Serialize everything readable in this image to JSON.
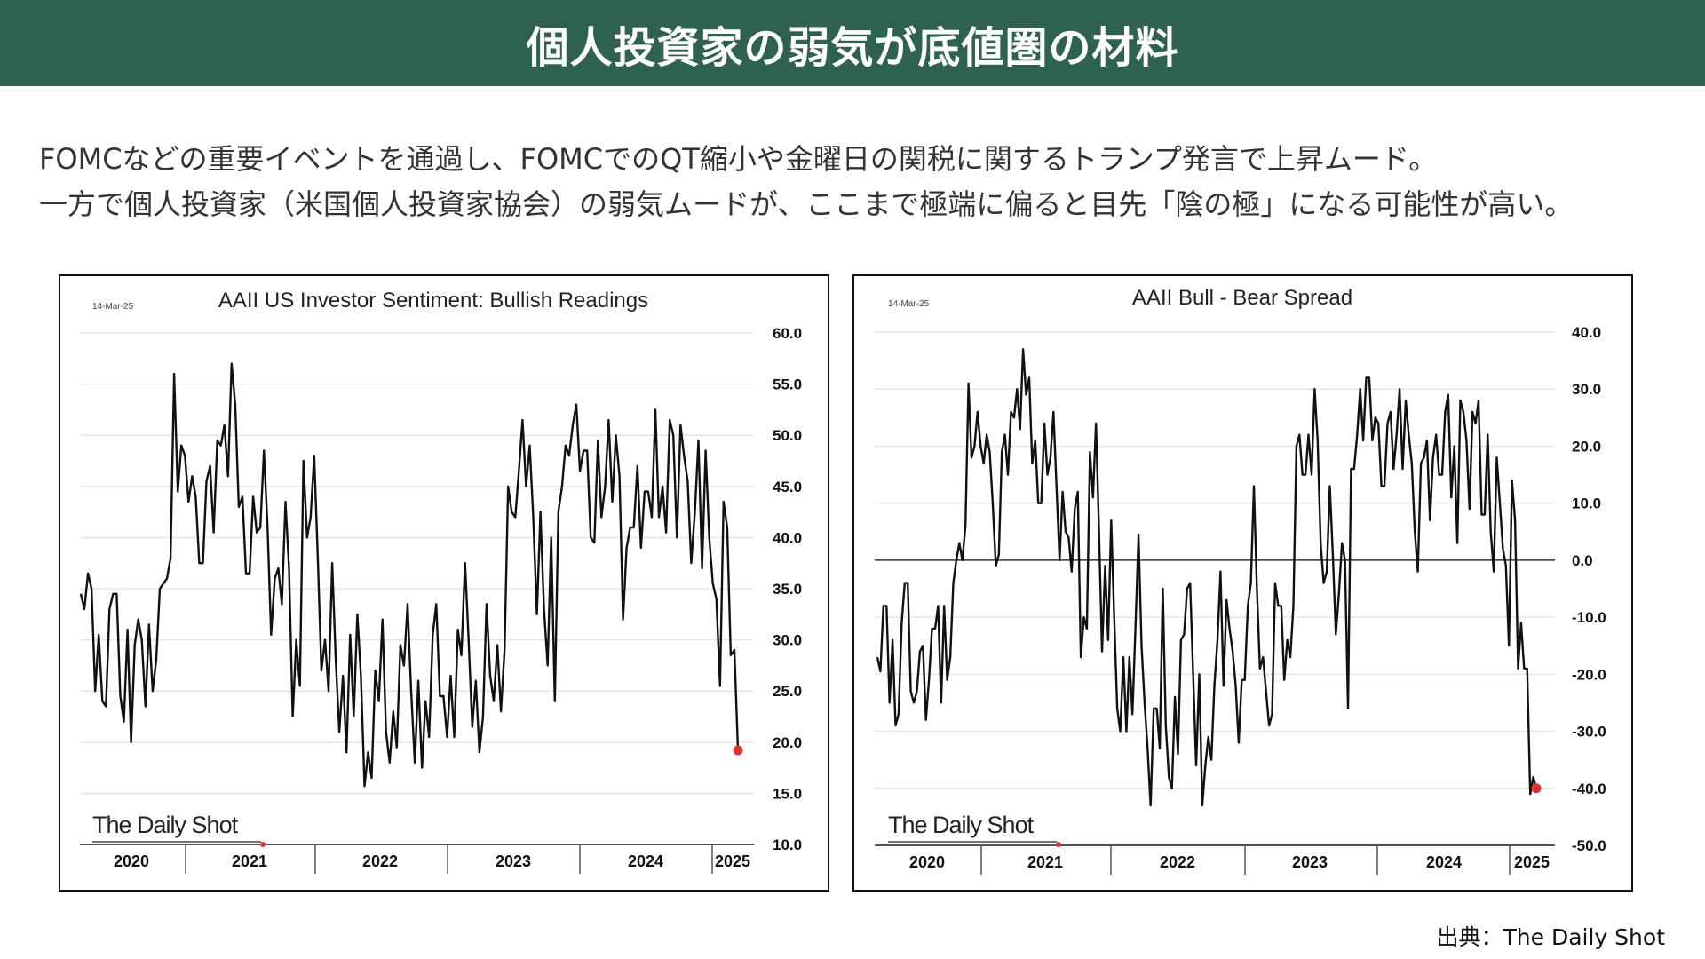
{
  "header": {
    "title": "個人投資家の弱気が底値圏の材料"
  },
  "description": {
    "line1": "FOMCなどの重要イベントを通過し、FOMCでのQT縮小や金曜日の関税に関するトランプ発言で上昇ムード。",
    "line2": "一方で個人投資家（米国個人投資家協会）の弱気ムードが、ここまで極端に偏ると目先「陰の極」になる可能性が高い。"
  },
  "source": "出典：The Daily Shot",
  "colors": {
    "header": "#2f6150",
    "line": "#111111",
    "marker": "#e03030"
  },
  "chart_data": [
    {
      "type": "line",
      "title": "AAII US Investor Sentiment: Bullish Readings",
      "date_label": "14-Mar-25",
      "logo": "The Daily Shot",
      "x_start": "2020-02",
      "x_end": "2025-03-14",
      "x_tick_labels": [
        "2020",
        "2021",
        "2022",
        "2023",
        "2024",
        "2025"
      ],
      "ylim": [
        10,
        60
      ],
      "y_ticks": [
        "60.0",
        "55.0",
        "50.0",
        "45.0",
        "40.0",
        "35.0",
        "30.0",
        "25.0",
        "20.0",
        "15.0",
        "10.0"
      ],
      "last_value": 19.2,
      "values": [
        34.5,
        33,
        36.5,
        35,
        25,
        30.5,
        24,
        23.5,
        33,
        34.5,
        34.5,
        24.5,
        22,
        31,
        20,
        29.5,
        32,
        30,
        23.5,
        31.5,
        25,
        28,
        35,
        35.5,
        36,
        38,
        56,
        44.5,
        49,
        48,
        43.5,
        46,
        44,
        37.5,
        37.5,
        45.5,
        47,
        40.5,
        49.5,
        49,
        51,
        46,
        57,
        53,
        43,
        44,
        36.5,
        36.5,
        44,
        40.5,
        41,
        48.5,
        41,
        30.5,
        36,
        37,
        33.5,
        43.5,
        37,
        22.5,
        30,
        25.5,
        47.5,
        40,
        42,
        48,
        38,
        27,
        30,
        25,
        37.5,
        28,
        21,
        26.5,
        19,
        30.5,
        22.5,
        32.5,
        26.5,
        15.7,
        19,
        16.5,
        27,
        24,
        32,
        21,
        18,
        23,
        19.5,
        29.5,
        27.5,
        33.5,
        25,
        18,
        26,
        17.5,
        24,
        20.5,
        30.5,
        33.5,
        24.5,
        24.5,
        20.5,
        26.5,
        20.5,
        31,
        28.5,
        37.5,
        30,
        21.5,
        26,
        19,
        22.5,
        33.5,
        26.5,
        24,
        29.5,
        23,
        29,
        45,
        42.5,
        42,
        46.5,
        51.5,
        45,
        49,
        42,
        32.5,
        42.5,
        33,
        27.5,
        40,
        24,
        42.5,
        45,
        49,
        48,
        51,
        53,
        46.5,
        48.5,
        48.5,
        40,
        39.5,
        49.5,
        42,
        45,
        51.5,
        43.5,
        50,
        46,
        32,
        39,
        41,
        41,
        47,
        39,
        44.5,
        44.5,
        42,
        52.5,
        42,
        45,
        40.5,
        51.5,
        50,
        40,
        51,
        48,
        45.5,
        37.5,
        42.5,
        49.5,
        37,
        48.5,
        40,
        35.5,
        34,
        25.5,
        43.5,
        41,
        28.5,
        29,
        19.2
      ]
    },
    {
      "type": "line",
      "title": "AAII Bull - Bear Spread",
      "date_label": "14-Mar-25",
      "logo": "The Daily Shot",
      "x_start": "2020-02",
      "x_end": "2025-03-14",
      "x_tick_labels": [
        "2020",
        "2021",
        "2022",
        "2023",
        "2024",
        "2025"
      ],
      "ylim": [
        -50,
        40
      ],
      "y_ticks": [
        "40.0",
        "30.0",
        "20.0",
        "10.0",
        "0.0",
        "-10.0",
        "-20.0",
        "-30.0",
        "-40.0",
        "-50.0"
      ],
      "last_value": -40,
      "values": [
        -17,
        -19.5,
        -8,
        -8,
        -25,
        -14,
        -29,
        -27,
        -11,
        -4,
        -4,
        -23,
        -25,
        -23,
        -16,
        -15,
        -28,
        -21,
        -12,
        -12,
        -8,
        -25,
        -8,
        -21,
        -17,
        -4,
        0,
        3,
        0,
        6,
        31,
        18,
        20,
        26,
        20,
        17,
        22,
        19,
        10,
        -1,
        1,
        19,
        22,
        15,
        26,
        25,
        30,
        23,
        37,
        29,
        32,
        17,
        21,
        10,
        10,
        24,
        15,
        18,
        26,
        13,
        0,
        12,
        5,
        4,
        -2,
        9,
        12,
        -17,
        -10,
        -12,
        19,
        11,
        24,
        5,
        -16,
        -1,
        -14,
        7,
        -10,
        -26,
        -30,
        -17,
        -30,
        -17,
        -27,
        -12,
        4.5,
        -15,
        -25,
        -33,
        -43,
        -26,
        -26,
        -33,
        -5,
        -29,
        -38,
        -40,
        -24,
        -34,
        -14,
        -13,
        -5,
        -4,
        -20,
        -36,
        -20,
        -43,
        -36,
        -31,
        -35,
        -22,
        -14,
        -2,
        -22,
        -7,
        -12,
        -16,
        -22,
        -32,
        -21,
        -21,
        -8,
        -4,
        13,
        -5,
        -19,
        -17,
        -23,
        -29,
        -27,
        -4,
        -8,
        -8,
        -21,
        -14,
        -17,
        -8,
        20,
        22,
        15,
        15,
        22,
        15,
        30,
        21,
        3,
        -4,
        -2,
        13,
        1,
        -13,
        -6,
        3,
        0,
        -26,
        16,
        16,
        22,
        30,
        21,
        32,
        32,
        21,
        25,
        24,
        13,
        13,
        24,
        26,
        16,
        22,
        30,
        16,
        28,
        22,
        17,
        5,
        -2,
        17,
        18,
        21,
        7,
        18,
        22,
        15,
        15,
        26,
        29,
        11,
        20,
        3,
        28,
        26,
        21,
        9,
        26,
        24,
        28,
        8,
        8,
        22,
        5,
        -2,
        18,
        10,
        2,
        -1,
        -15,
        14,
        7,
        -19,
        -11,
        -19,
        -19,
        -41,
        -38,
        -40
      ]
    }
  ]
}
